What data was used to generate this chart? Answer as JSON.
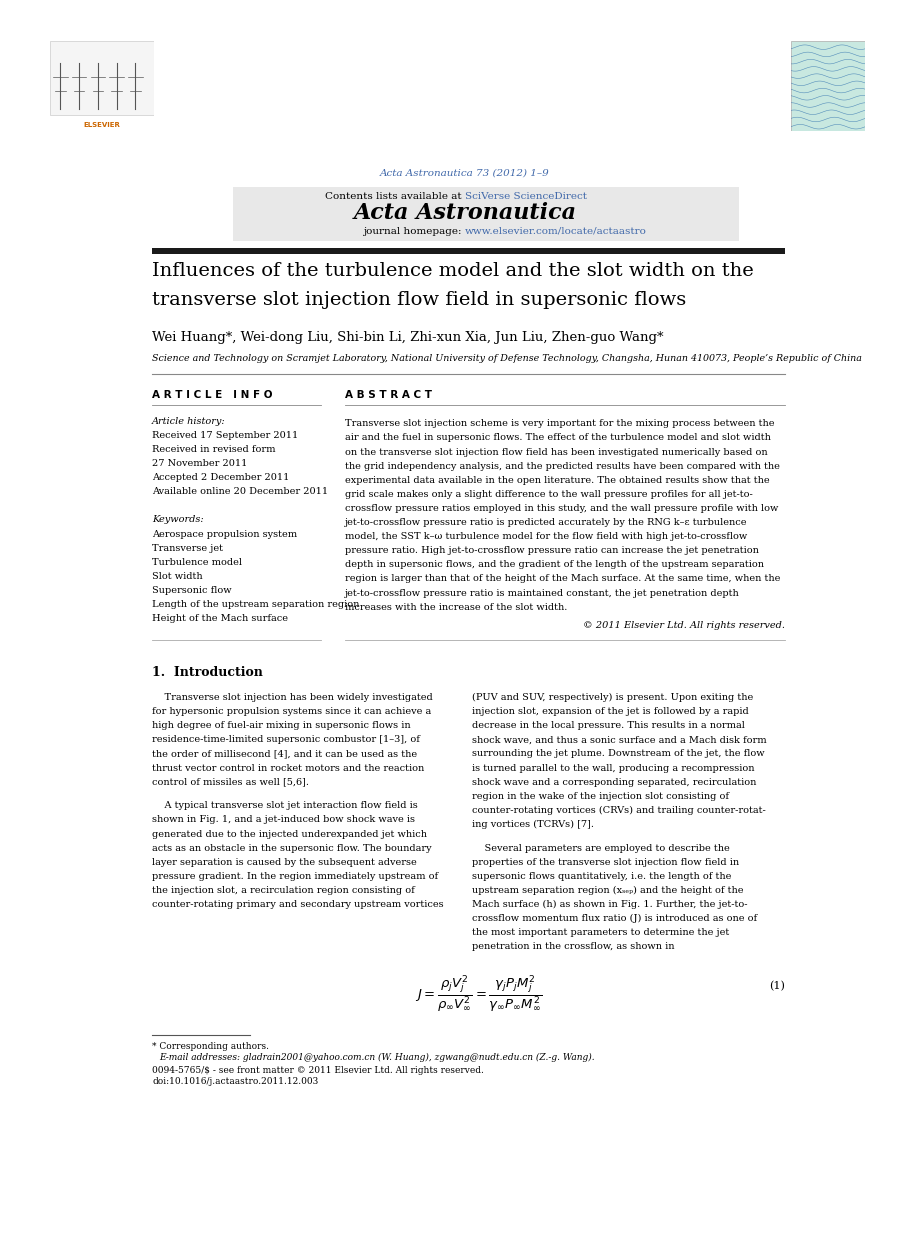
{
  "page_width": 9.07,
  "page_height": 12.38,
  "background_color": "#ffffff",
  "journal_line": "Acta Astronautica 73 (2012) 1–9",
  "journal_line_color": "#4169aa",
  "header_bg_color": "#e8e8e8",
  "header_text1": "Contents lists available at ",
  "header_link": "SciVerse ScienceDirect",
  "header_link_color": "#4169aa",
  "journal_title": "Acta Astronautica",
  "homepage_prefix": "journal homepage: ",
  "homepage_url": "www.elsevier.com/locate/actaastro",
  "homepage_url_color": "#4169aa",
  "paper_title_line1": "Influences of the turbulence model and the slot width on the",
  "paper_title_line2": "transverse slot injection flow field in supersonic flows",
  "authors": "Wei Huang*, Wei-dong Liu, Shi-bin Li, Zhi-xun Xia, Jun Liu, Zhen-guo Wang*",
  "affiliation": "Science and Technology on Scramjet Laboratory, National University of Defense Technology, Changsha, Hunan 410073, People’s Republic of China",
  "article_info_header": "A R T I C L E   I N F O",
  "abstract_header": "A B S T R A C T",
  "article_history_label": "Article history:",
  "received": "Received 17 September 2011",
  "revised": "Received in revised form",
  "revised2": "27 November 2011",
  "accepted": "Accepted 2 December 2011",
  "available": "Available online 20 December 2011",
  "keywords_label": "Keywords:",
  "keywords": [
    "Aerospace propulsion system",
    "Transverse jet",
    "Turbulence model",
    "Slot width",
    "Supersonic flow",
    "Length of the upstream separation region",
    "Height of the Mach surface"
  ],
  "abstract_lines": [
    "Transverse slot injection scheme is very important for the mixing process between the",
    "air and the fuel in supersonic flows. The effect of the turbulence model and slot width",
    "on the transverse slot injection flow field has been investigated numerically based on",
    "the grid independency analysis, and the predicted results have been compared with the",
    "experimental data available in the open literature. The obtained results show that the",
    "grid scale makes only a slight difference to the wall pressure profiles for all jet-to-",
    "crossflow pressure ratios employed in this study, and the wall pressure profile with low",
    "jet-to-crossflow pressure ratio is predicted accurately by the RNG k–ε turbulence",
    "model, the SST k–ω turbulence model for the flow field with high jet-to-crossflow",
    "pressure ratio. High jet-to-crossflow pressure ratio can increase the jet penetration",
    "depth in supersonic flows, and the gradient of the length of the upstream separation",
    "region is larger than that of the height of the Mach surface. At the same time, when the",
    "jet-to-crossflow pressure ratio is maintained constant, the jet penetration depth",
    "increases with the increase of the slot width."
  ],
  "copyright": "© 2011 Elsevier Ltd. All rights reserved.",
  "section1_num": "1.",
  "section1_title": "Introduction",
  "col1_p1_lines": [
    "    Transverse slot injection has been widely investigated",
    "for hypersonic propulsion systems since it can achieve a",
    "high degree of fuel-air mixing in supersonic flows in",
    "residence-time-limited supersonic combustor [1–3], of",
    "the order of millisecond [4], and it can be used as the",
    "thrust vector control in rocket motors and the reaction",
    "control of missiles as well [5,6]."
  ],
  "col1_p2_lines": [
    "    A typical transverse slot jet interaction flow field is",
    "shown in Fig. 1, and a jet-induced bow shock wave is",
    "generated due to the injected underexpanded jet which",
    "acts as an obstacle in the supersonic flow. The boundary",
    "layer separation is caused by the subsequent adverse",
    "pressure gradient. In the region immediately upstream of",
    "the injection slot, a recirculation region consisting of",
    "counter-rotating primary and secondary upstream vortices"
  ],
  "col2_p1_lines": [
    "(PUV and SUV, respectively) is present. Upon exiting the",
    "injection slot, expansion of the jet is followed by a rapid",
    "decrease in the local pressure. This results in a normal",
    "shock wave, and thus a sonic surface and a Mach disk form",
    "surrounding the jet plume. Downstream of the jet, the flow",
    "is turned parallel to the wall, producing a recompression",
    "shock wave and a corresponding separated, recirculation",
    "region in the wake of the injection slot consisting of",
    "counter-rotating vortices (CRVs) and trailing counter-rotat-",
    "ing vortices (TCRVs) [7]."
  ],
  "col2_p2_lines": [
    "    Several parameters are employed to describe the",
    "properties of the transverse slot injection flow field in",
    "supersonic flows quantitatively, i.e. the length of the",
    "upstream separation region (xₛₑₚ) and the height of the",
    "Mach surface (h) as shown in Fig. 1. Further, the jet-to-",
    "crossflow momentum flux ratio (J) is introduced as one of",
    "the most important parameters to determine the jet",
    "penetration in the crossflow, as shown in"
  ],
  "footnote_star": "* Corresponding authors.",
  "footnote_email": "E-mail addresses: gladrain2001@yahoo.com.cn (W. Huang), zgwang@nudt.edu.cn (Z.-g. Wang).",
  "doi_text": "0094-5765/$ - see front matter © 2011 Elsevier Ltd. All rights reserved.",
  "doi_text2": "doi:10.1016/j.actaastro.2011.12.003",
  "dark_bar_color": "#1a1a1a",
  "text_color": "#000000"
}
